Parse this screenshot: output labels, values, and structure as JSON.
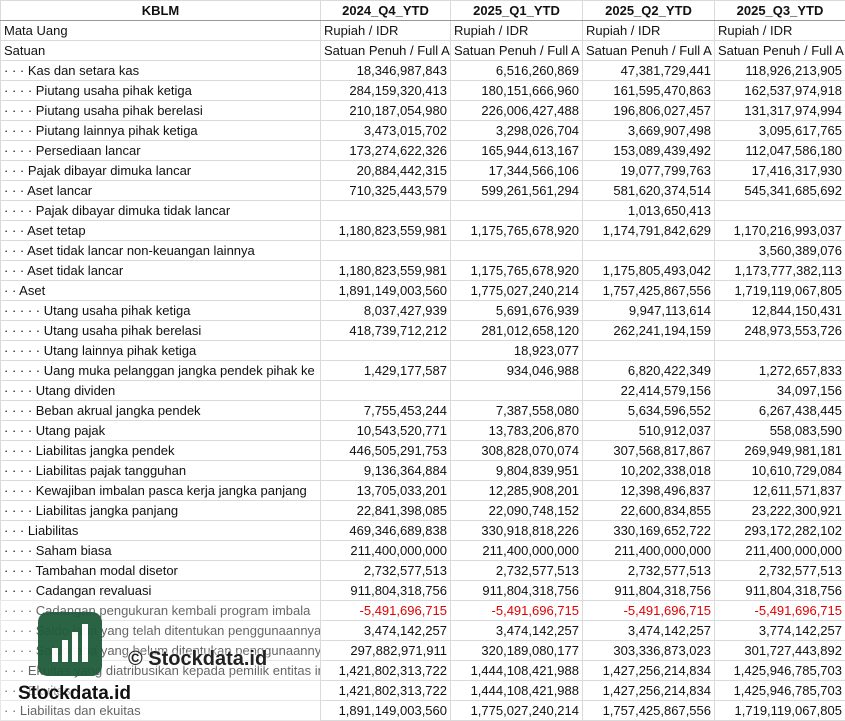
{
  "table": {
    "columns": [
      "KBLM",
      "2024_Q4_YTD",
      "2025_Q1_YTD",
      "2025_Q2_YTD",
      "2025_Q3_YTD"
    ],
    "rows": [
      {
        "label": "Mata Uang",
        "values": [
          "Rupiah / IDR",
          "Rupiah / IDR",
          "Rupiah / IDR",
          "Rupiah / IDR"
        ]
      },
      {
        "label": "Satuan",
        "values": [
          "Satuan Penuh / Full A",
          "Satuan Penuh / Full A",
          "Satuan Penuh / Full A",
          "Satuan Penuh / Full A"
        ]
      },
      {
        "label": "· · · Kas dan setara kas",
        "values": [
          "18,346,987,843",
          "6,516,260,869",
          "47,381,729,441",
          "118,926,213,905"
        ]
      },
      {
        "label": "· · · · Piutang usaha pihak ketiga",
        "values": [
          "284,159,320,413",
          "180,151,666,960",
          "161,595,470,863",
          "162,537,974,918"
        ]
      },
      {
        "label": "· · · · Piutang usaha pihak berelasi",
        "values": [
          "210,187,054,980",
          "226,006,427,488",
          "196,806,027,457",
          "131,317,974,994"
        ]
      },
      {
        "label": "· · · · Piutang lainnya pihak ketiga",
        "values": [
          "3,473,015,702",
          "3,298,026,704",
          "3,669,907,498",
          "3,095,617,765"
        ]
      },
      {
        "label": "· · · · Persediaan lancar",
        "values": [
          "173,274,622,326",
          "165,944,613,167",
          "153,089,439,492",
          "112,047,586,180"
        ]
      },
      {
        "label": "· · · Pajak dibayar dimuka lancar",
        "values": [
          "20,884,442,315",
          "17,344,566,106",
          "19,077,799,763",
          "17,416,317,930"
        ]
      },
      {
        "label": "· · · Aset lancar",
        "values": [
          "710,325,443,579",
          "599,261,561,294",
          "581,620,374,514",
          "545,341,685,692"
        ]
      },
      {
        "label": "· · · · Pajak dibayar dimuka tidak lancar",
        "values": [
          null,
          null,
          "1,013,650,413",
          null
        ]
      },
      {
        "label": "· · · Aset tetap",
        "values": [
          "1,180,823,559,981",
          "1,175,765,678,920",
          "1,174,791,842,629",
          "1,170,216,993,037"
        ]
      },
      {
        "label": "· · · Aset tidak lancar non-keuangan lainnya",
        "values": [
          null,
          null,
          null,
          "3,560,389,076"
        ]
      },
      {
        "label": "· · · Aset tidak lancar",
        "values": [
          "1,180,823,559,981",
          "1,175,765,678,920",
          "1,175,805,493,042",
          "1,173,777,382,113"
        ]
      },
      {
        "label": "· · Aset",
        "values": [
          "1,891,149,003,560",
          "1,775,027,240,214",
          "1,757,425,867,556",
          "1,719,119,067,805"
        ]
      },
      {
        "label": "· · · · · Utang usaha pihak ketiga",
        "values": [
          "8,037,427,939",
          "5,691,676,939",
          "9,947,113,614",
          "12,844,150,431"
        ]
      },
      {
        "label": "· · · · · Utang usaha pihak berelasi",
        "values": [
          "418,739,712,212",
          "281,012,658,120",
          "262,241,194,159",
          "248,973,553,726"
        ]
      },
      {
        "label": "· · · · · Utang lainnya pihak ketiga",
        "values": [
          null,
          "18,923,077",
          null,
          null
        ]
      },
      {
        "label": "· · · · · Uang muka pelanggan jangka pendek pihak ke",
        "values": [
          "1,429,177,587",
          "934,046,988",
          "6,820,422,349",
          "1,272,657,833"
        ]
      },
      {
        "label": "· · · · Utang dividen",
        "values": [
          null,
          null,
          "22,414,579,156",
          "34,097,156"
        ]
      },
      {
        "label": "· · · · Beban akrual jangka pendek",
        "values": [
          "7,755,453,244",
          "7,387,558,080",
          "5,634,596,552",
          "6,267,438,445"
        ]
      },
      {
        "label": "· · · · Utang pajak",
        "values": [
          "10,543,520,771",
          "13,783,206,870",
          "510,912,037",
          "558,083,590"
        ]
      },
      {
        "label": "· · · · Liabilitas jangka pendek",
        "values": [
          "446,505,291,753",
          "308,828,070,074",
          "307,568,817,867",
          "269,949,981,181"
        ]
      },
      {
        "label": "· · · · Liabilitas pajak tangguhan",
        "values": [
          "9,136,364,884",
          "9,804,839,951",
          "10,202,338,018",
          "10,610,729,084"
        ]
      },
      {
        "label": "· · · · Kewajiban imbalan pasca kerja jangka panjang",
        "values": [
          "13,705,033,201",
          "12,285,908,201",
          "12,398,496,837",
          "12,611,571,837"
        ]
      },
      {
        "label": "· · · · Liabilitas jangka panjang",
        "values": [
          "22,841,398,085",
          "22,090,748,152",
          "22,600,834,855",
          "23,222,300,921"
        ]
      },
      {
        "label": "· · · Liabilitas",
        "values": [
          "469,346,689,838",
          "330,918,818,226",
          "330,169,652,722",
          "293,172,282,102"
        ]
      },
      {
        "label": "· · · · Saham biasa",
        "values": [
          "211,400,000,000",
          "211,400,000,000",
          "211,400,000,000",
          "211,400,000,000"
        ]
      },
      {
        "label": "· · · · Tambahan modal disetor",
        "values": [
          "2,732,577,513",
          "2,732,577,513",
          "2,732,577,513",
          "2,732,577,513"
        ]
      },
      {
        "label": "· · · · Cadangan revaluasi",
        "values": [
          "911,804,318,756",
          "911,804,318,756",
          "911,804,318,756",
          "911,804,318,756"
        ]
      },
      {
        "label": "· · · · Cadangan pengukuran kembali program imbala",
        "values": [
          "-5,491,696,715",
          "-5,491,696,715",
          "-5,491,696,715",
          "-5,491,696,715"
        ]
      },
      {
        "label": "· · · · Saldo laba yang telah ditentukan penggunaannya",
        "values": [
          "3,474,142,257",
          "3,474,142,257",
          "3,474,142,257",
          "3,774,142,257"
        ]
      },
      {
        "label": "· · · · Saldo laba yang belum ditentukan penggunaannya",
        "values": [
          "297,882,971,911",
          "320,189,080,177",
          "303,336,873,023",
          "301,727,443,892"
        ]
      },
      {
        "label": "· · · Ekuitas yang diatribusikan kepada pemilik entitas induk",
        "values": [
          "1,421,802,313,722",
          "1,444,108,421,988",
          "1,427,256,214,834",
          "1,425,946,785,703"
        ]
      },
      {
        "label": "· · · Ekuitas",
        "values": [
          "1,421,802,313,722",
          "1,444,108,421,988",
          "1,427,256,214,834",
          "1,425,946,785,703"
        ]
      },
      {
        "label": "· · Liabilitas dan ekuitas",
        "values": [
          "1,891,149,003,560",
          "1,775,027,240,214",
          "1,757,425,867,556",
          "1,719,119,067,805"
        ]
      }
    ]
  },
  "watermark": {
    "text": "© Stockdata.id",
    "brand": "Stockdata.id"
  }
}
